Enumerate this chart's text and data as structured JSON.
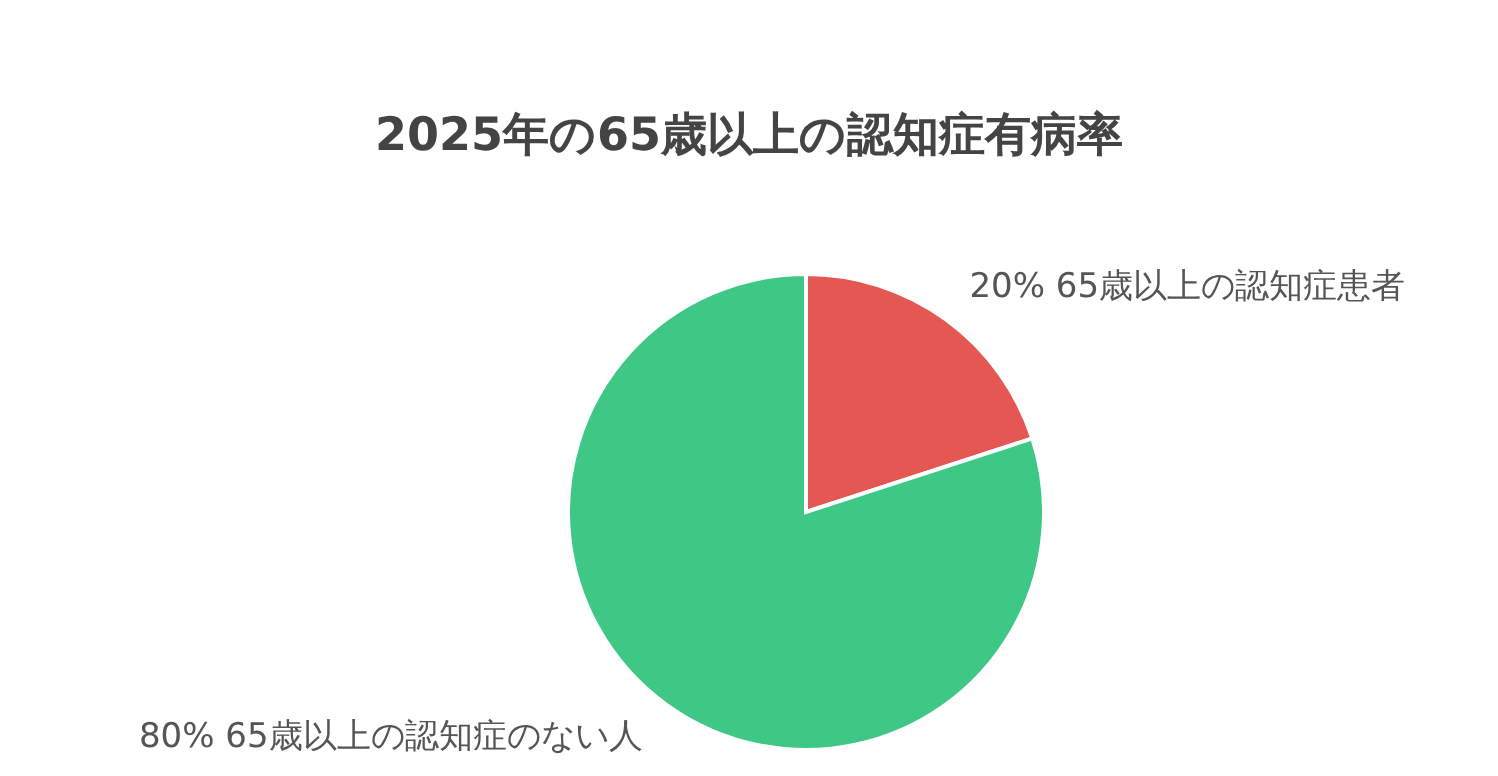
{
  "chart_data": {
    "type": "pie",
    "title": "2025年の65歳以上の認知症有病率",
    "categories": [
      "65歳以上の認知症患者",
      "65歳以上の認知症のない人"
    ],
    "values": [
      20,
      80
    ],
    "value_labels": [
      "20%",
      "80%"
    ],
    "colors": [
      "#e55753",
      "#3ec785"
    ]
  }
}
